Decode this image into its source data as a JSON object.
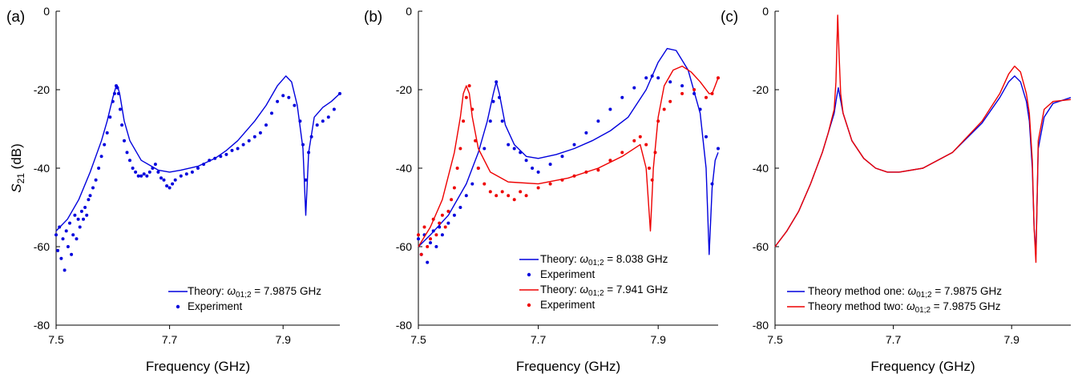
{
  "figure": {
    "panels": [
      {
        "label": "(a)",
        "xlabel": "Frequency (GHz)",
        "ylabel_main": "S",
        "ylabel_sub": "21",
        "ylabel_unit": " (dB)"
      },
      {
        "label": "(b)",
        "xlabel": "Frequency (GHz)"
      },
      {
        "label": "(c)",
        "xlabel": "Frequency (GHz)"
      }
    ]
  },
  "chart_data": [
    {
      "type": "line",
      "title": "",
      "panel_label": "(a)",
      "xlabel": "Frequency (GHz)",
      "ylabel": "S21 (dB)",
      "xlim": [
        7.5,
        8.0
      ],
      "ylim": [
        -80,
        0
      ],
      "xticks": [
        "7.5",
        "7.7",
        "7.9"
      ],
      "yticks": [
        "-80",
        "-60",
        "-40",
        "-20",
        "0"
      ],
      "legend_position": "bottom-right",
      "colors": {
        "theory": "#0000dd",
        "experiment": "#0000dd"
      },
      "series": [
        {
          "name": "Theory: ω01;2 = 7.9875 GHz",
          "legend_prefix": "Theory: ",
          "legend_math": "ω",
          "legend_sub": "01;2",
          "legend_suffix": " = 7.9875 GHz",
          "kind": "line",
          "color": "#0000dd",
          "x": [
            7.5,
            7.52,
            7.54,
            7.56,
            7.58,
            7.59,
            7.6,
            7.605,
            7.608,
            7.612,
            7.62,
            7.63,
            7.65,
            7.68,
            7.7,
            7.72,
            7.75,
            7.78,
            7.8,
            7.82,
            7.85,
            7.87,
            7.89,
            7.905,
            7.915,
            7.925,
            7.935,
            7.94,
            7.945,
            7.955,
            7.97,
            7.985,
            8.0
          ],
          "y": [
            -56,
            -53,
            -48,
            -41,
            -33,
            -28,
            -22,
            -19.5,
            -19,
            -21,
            -28,
            -33,
            -38,
            -40.5,
            -41,
            -40.5,
            -39.5,
            -37.5,
            -35.5,
            -33,
            -28,
            -24,
            -19,
            -16.5,
            -18,
            -24,
            -35,
            -52,
            -36,
            -27,
            -24.5,
            -23,
            -21
          ]
        },
        {
          "name": "Experiment",
          "kind": "scatter",
          "color": "#0000dd",
          "x": [
            7.5,
            7.503,
            7.506,
            7.509,
            7.512,
            7.515,
            7.518,
            7.521,
            7.524,
            7.527,
            7.53,
            7.533,
            7.536,
            7.539,
            7.542,
            7.545,
            7.548,
            7.551,
            7.554,
            7.557,
            7.56,
            7.565,
            7.57,
            7.575,
            7.58,
            7.585,
            7.59,
            7.595,
            7.6,
            7.603,
            7.606,
            7.608,
            7.61,
            7.613,
            7.616,
            7.62,
            7.625,
            7.63,
            7.635,
            7.64,
            7.645,
            7.65,
            7.655,
            7.66,
            7.665,
            7.67,
            7.675,
            7.68,
            7.685,
            7.69,
            7.695,
            7.7,
            7.705,
            7.71,
            7.72,
            7.73,
            7.74,
            7.75,
            7.76,
            7.77,
            7.78,
            7.79,
            7.8,
            7.81,
            7.82,
            7.83,
            7.84,
            7.85,
            7.86,
            7.87,
            7.88,
            7.89,
            7.9,
            7.91,
            7.92,
            7.93,
            7.935,
            7.94,
            7.945,
            7.95,
            7.96,
            7.97,
            7.98,
            7.99,
            8.0
          ],
          "y": [
            -57,
            -61,
            -55,
            -63,
            -58,
            -66,
            -56,
            -60,
            -54,
            -62,
            -57,
            -52,
            -58,
            -53,
            -55,
            -51,
            -53,
            -50,
            -52,
            -48,
            -47,
            -45,
            -43,
            -40,
            -37,
            -34,
            -31,
            -27,
            -23,
            -21,
            -19,
            -19.5,
            -21,
            -25,
            -29,
            -33,
            -36,
            -38,
            -40,
            -41,
            -42,
            -42,
            -41.5,
            -42,
            -41,
            -40,
            -39,
            -41,
            -42.5,
            -43,
            -44.5,
            -45,
            -44,
            -43,
            -42,
            -41.5,
            -41,
            -40,
            -39,
            -38,
            -37.5,
            -37,
            -36.5,
            -35.5,
            -35,
            -34,
            -33,
            -32,
            -31,
            -29,
            -26,
            -23,
            -21.5,
            -22,
            -24,
            -28,
            -34,
            -43,
            -36,
            -32,
            -29,
            -28,
            -27,
            -25,
            -21
          ]
        }
      ]
    },
    {
      "type": "line",
      "title": "",
      "panel_label": "(b)",
      "xlabel": "Frequency (GHz)",
      "ylabel": "",
      "xlim": [
        7.5,
        8.0
      ],
      "ylim": [
        -80,
        0
      ],
      "xticks": [
        "7.5",
        "7.7",
        "7.9"
      ],
      "yticks": [
        "-80",
        "-60",
        "-40",
        "-20",
        "0"
      ],
      "legend_position": "bottom-right",
      "colors": {
        "blue": "#0000dd",
        "red": "#ee0000"
      },
      "series": [
        {
          "name": "Theory: ω01;2 = 8.038 GHz",
          "legend_prefix": "Theory: ",
          "legend_math": "ω",
          "legend_sub": "01;2",
          "legend_suffix": " = 8.038 GHz",
          "kind": "line",
          "color": "#0000dd",
          "x": [
            7.5,
            7.52,
            7.55,
            7.58,
            7.6,
            7.615,
            7.625,
            7.63,
            7.635,
            7.645,
            7.66,
            7.68,
            7.7,
            7.73,
            7.76,
            7.79,
            7.82,
            7.85,
            7.88,
            7.9,
            7.915,
            7.93,
            7.95,
            7.97,
            7.98,
            7.985,
            7.99,
            7.995,
            8.0
          ],
          "y": [
            -60,
            -57,
            -52,
            -44,
            -36,
            -28,
            -21,
            -18,
            -21,
            -29,
            -34,
            -37,
            -37.5,
            -36.5,
            -35,
            -33,
            -30.5,
            -27,
            -20,
            -13,
            -9.5,
            -10,
            -15,
            -26,
            -40,
            -62,
            -45,
            -38,
            -36
          ]
        },
        {
          "name": "Experiment",
          "kind": "scatter",
          "color": "#0000dd",
          "x": [
            7.5,
            7.505,
            7.51,
            7.515,
            7.52,
            7.525,
            7.53,
            7.535,
            7.54,
            7.55,
            7.56,
            7.57,
            7.58,
            7.59,
            7.6,
            7.61,
            7.62,
            7.625,
            7.63,
            7.635,
            7.64,
            7.65,
            7.66,
            7.67,
            7.68,
            7.69,
            7.7,
            7.72,
            7.74,
            7.76,
            7.78,
            7.8,
            7.82,
            7.84,
            7.86,
            7.88,
            7.89,
            7.9,
            7.92,
            7.94,
            7.96,
            7.97,
            7.98,
            7.99,
            8.0
          ],
          "y": [
            -58,
            -62,
            -57,
            -64,
            -59,
            -56,
            -60,
            -55,
            -57,
            -54,
            -52,
            -50,
            -47,
            -44,
            -40,
            -35,
            -28,
            -23,
            -18,
            -22,
            -28,
            -34,
            -35,
            -36,
            -38,
            -40,
            -41,
            -39,
            -37,
            -34,
            -31,
            -28,
            -25,
            -22,
            -19.5,
            -17,
            -16.5,
            -17,
            -18,
            -19,
            -21,
            -25,
            -32,
            -44,
            -35
          ]
        },
        {
          "name": "Theory: ω01;2 = 7.941 GHz",
          "legend_prefix": "Theory: ",
          "legend_math": "ω",
          "legend_sub": "01;2",
          "legend_suffix": " = 7.941 GHz",
          "kind": "line",
          "color": "#ee0000",
          "x": [
            7.5,
            7.52,
            7.54,
            7.56,
            7.57,
            7.575,
            7.58,
            7.585,
            7.59,
            7.6,
            7.62,
            7.65,
            7.7,
            7.75,
            7.8,
            7.84,
            7.87,
            7.88,
            7.887,
            7.892,
            7.9,
            7.91,
            7.925,
            7.94,
            7.955,
            7.97,
            7.985,
            7.99,
            7.995,
            8.0
          ],
          "y": [
            -60,
            -55,
            -48,
            -36,
            -27,
            -21,
            -19,
            -21,
            -27,
            -35,
            -41,
            -43.5,
            -44,
            -42.5,
            -40,
            -37,
            -34,
            -40,
            -56,
            -40,
            -27,
            -19,
            -15,
            -14,
            -15.5,
            -18,
            -21,
            -21,
            -19,
            -17
          ]
        },
        {
          "name": "Experiment",
          "kind": "scatter",
          "color": "#ee0000",
          "x": [
            7.5,
            7.505,
            7.51,
            7.515,
            7.52,
            7.525,
            7.53,
            7.535,
            7.54,
            7.545,
            7.55,
            7.555,
            7.56,
            7.565,
            7.57,
            7.575,
            7.58,
            7.585,
            7.59,
            7.595,
            7.6,
            7.61,
            7.62,
            7.63,
            7.64,
            7.65,
            7.66,
            7.67,
            7.68,
            7.7,
            7.72,
            7.74,
            7.76,
            7.78,
            7.8,
            7.82,
            7.84,
            7.86,
            7.87,
            7.88,
            7.885,
            7.89,
            7.895,
            7.9,
            7.91,
            7.92,
            7.94,
            7.96,
            7.98,
            7.99,
            8.0
          ],
          "y": [
            -57,
            -62,
            -55,
            -60,
            -58,
            -53,
            -57,
            -54,
            -52,
            -55,
            -51,
            -48,
            -45,
            -40,
            -35,
            -28,
            -22,
            -19,
            -25,
            -33,
            -40,
            -44,
            -46,
            -47,
            -46,
            -47,
            -48,
            -46,
            -47,
            -45,
            -44,
            -43,
            -42,
            -41,
            -40.5,
            -38,
            -36,
            -33,
            -32,
            -34,
            -40,
            -43,
            -36,
            -28,
            -25,
            -23,
            -21,
            -20,
            -22,
            -21,
            -17
          ]
        }
      ]
    },
    {
      "type": "line",
      "title": "",
      "panel_label": "(c)",
      "xlabel": "Frequency (GHz)",
      "ylabel": "",
      "xlim": [
        7.5,
        8.0
      ],
      "ylim": [
        -80,
        0
      ],
      "xticks": [
        "7.5",
        "7.7",
        "7.9"
      ],
      "yticks": [
        "-80",
        "-60",
        "-40",
        "-20",
        "0"
      ],
      "legend_position": "bottom-right",
      "colors": {
        "one": "#0000dd",
        "two": "#ee0000"
      },
      "series": [
        {
          "name": "Theory method one: ω01;2 = 7.9875 GHz",
          "legend_prefix": "Theory method one:  ",
          "legend_math": "ω",
          "legend_sub": "01;2",
          "legend_suffix": " = 7.9875 GHz",
          "kind": "line",
          "color": "#0000dd",
          "x": [
            7.5,
            7.52,
            7.54,
            7.56,
            7.58,
            7.59,
            7.6,
            7.604,
            7.607,
            7.61,
            7.615,
            7.63,
            7.65,
            7.67,
            7.69,
            7.71,
            7.75,
            7.8,
            7.85,
            7.88,
            7.895,
            7.905,
            7.915,
            7.925,
            7.93,
            7.935,
            7.938,
            7.941,
            7.945,
            7.955,
            7.97,
            8.0
          ],
          "y": [
            -60,
            -56,
            -51,
            -44,
            -36,
            -31,
            -26,
            -22,
            -19.5,
            -22,
            -26,
            -33,
            -37.5,
            -40,
            -41,
            -41,
            -40,
            -36,
            -28.5,
            -22,
            -18,
            -16.5,
            -18,
            -23,
            -28,
            -40,
            -55,
            -62,
            -35,
            -27,
            -23.5,
            -22
          ]
        },
        {
          "name": "Theory method two: ω01;2 = 7.9875 GHz",
          "legend_prefix": "Theory method two:  ",
          "legend_math": "ω",
          "legend_sub": "01;2",
          "legend_suffix": " = 7.9875 GHz",
          "kind": "line",
          "color": "#ee0000",
          "x": [
            7.5,
            7.52,
            7.54,
            7.56,
            7.58,
            7.59,
            7.6,
            7.603,
            7.606,
            7.608,
            7.611,
            7.615,
            7.63,
            7.65,
            7.67,
            7.69,
            7.71,
            7.75,
            7.8,
            7.85,
            7.88,
            7.895,
            7.905,
            7.915,
            7.925,
            7.93,
            7.935,
            7.938,
            7.941,
            7.945,
            7.955,
            7.97,
            8.0
          ],
          "y": [
            -60,
            -56,
            -51,
            -44,
            -36,
            -31,
            -25,
            -18,
            -1,
            -10,
            -21,
            -26,
            -33,
            -37.5,
            -40,
            -41,
            -41,
            -40,
            -36,
            -28,
            -21,
            -16,
            -14,
            -15.5,
            -21,
            -26,
            -38,
            -55,
            -64,
            -33,
            -25,
            -23,
            -22.5
          ]
        }
      ]
    }
  ]
}
